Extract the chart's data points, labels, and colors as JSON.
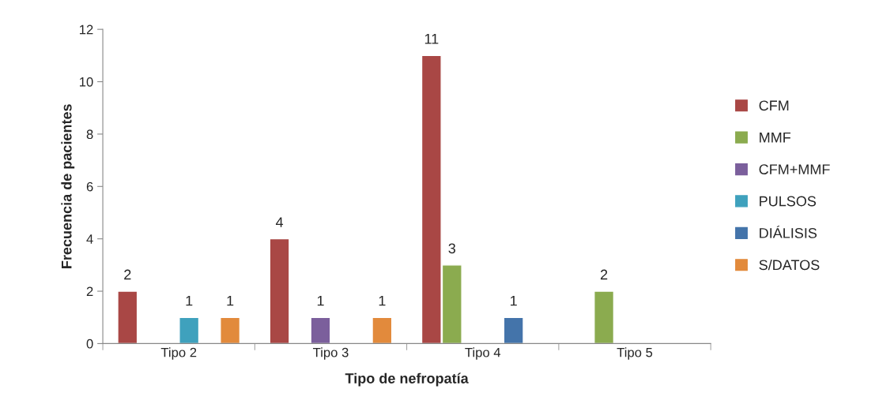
{
  "chart_data": {
    "type": "bar",
    "xlabel": "Tipo de nefropatía",
    "ylabel": "Frecuencia de pacientes",
    "categories": [
      "Tipo 2",
      "Tipo 3",
      "Tipo 4",
      "Tipo 5"
    ],
    "series": [
      {
        "name": "CFM",
        "color": "#a94745",
        "values": [
          2,
          4,
          11,
          null
        ]
      },
      {
        "name": "MMF",
        "color": "#8bab4f",
        "values": [
          null,
          null,
          3,
          2
        ]
      },
      {
        "name": "CFM+MMF",
        "color": "#7b5f9c",
        "values": [
          null,
          1,
          null,
          null
        ]
      },
      {
        "name": "PULSOS",
        "color": "#3fa1bd",
        "values": [
          1,
          null,
          null,
          null
        ]
      },
      {
        "name": "DIÁLISIS",
        "color": "#4474aa",
        "values": [
          null,
          null,
          1,
          null
        ]
      },
      {
        "name": "S/DATOS",
        "color": "#e28a3c",
        "values": [
          1,
          1,
          null,
          null
        ]
      }
    ],
    "ylim": [
      0,
      12
    ],
    "yticks": [
      0,
      2,
      4,
      6,
      8,
      10,
      12
    ],
    "grid": false,
    "legend": "right",
    "data_labels": true
  }
}
